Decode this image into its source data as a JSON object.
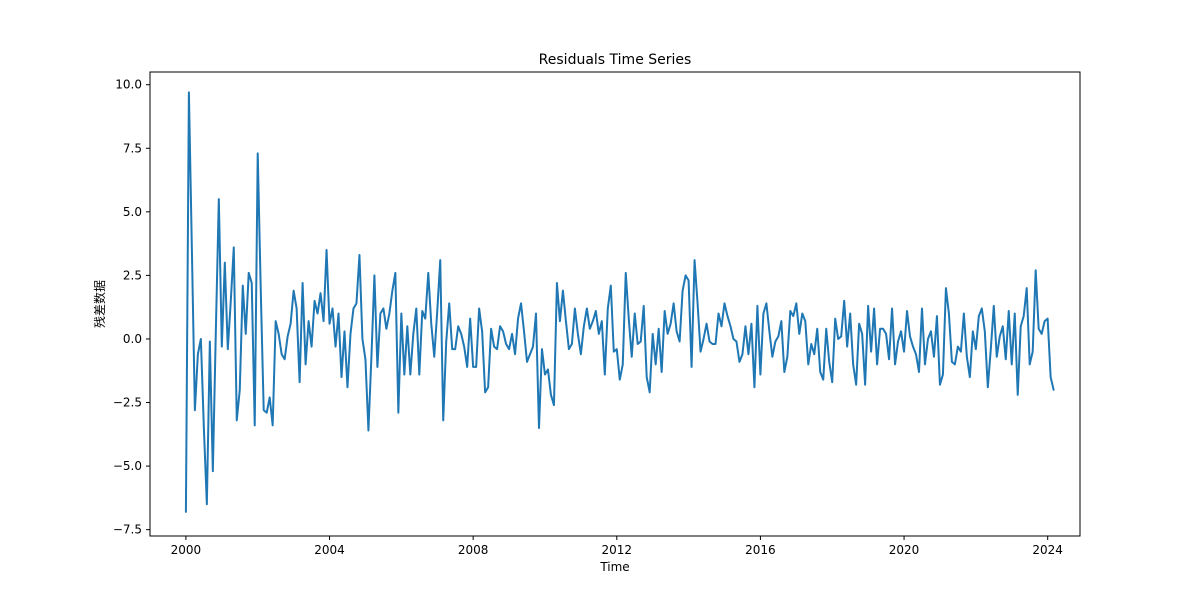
{
  "chart_data": {
    "type": "line",
    "title": "Residuals Time Series",
    "xlabel": "Time",
    "ylabel": "残差数据",
    "xlim": [
      1999.0,
      2024.9
    ],
    "ylim": [
      -7.75,
      10.5
    ],
    "x_ticks": [
      2000,
      2004,
      2008,
      2012,
      2016,
      2020,
      2024
    ],
    "x_tick_labels": [
      "2000",
      "2004",
      "2008",
      "2012",
      "2016",
      "2020",
      "2024"
    ],
    "y_ticks": [
      -7.5,
      -5.0,
      -2.5,
      0.0,
      2.5,
      5.0,
      7.5,
      10.0
    ],
    "y_tick_labels": [
      "−7.5",
      "−5.0",
      "−2.5",
      "0.0",
      "2.5",
      "5.0",
      "7.5",
      "10.0"
    ],
    "grid": false,
    "legend": false,
    "line_color": "#1f77b4",
    "series": [
      {
        "x_start": 2000.0,
        "x_step": 0.08333,
        "values": [
          -6.8,
          9.7,
          3.5,
          -2.8,
          -0.6,
          0.0,
          -3.5,
          -6.5,
          -0.1,
          -5.2,
          0.3,
          5.5,
          -0.3,
          3.0,
          -0.4,
          1.5,
          3.6,
          -3.2,
          -2.0,
          2.1,
          0.2,
          2.6,
          2.2,
          -3.4,
          7.3,
          2.0,
          -2.8,
          -2.9,
          -2.3,
          -3.4,
          0.7,
          0.2,
          -0.6,
          -0.8,
          0.1,
          0.6,
          1.9,
          1.2,
          -1.7,
          2.2,
          -1.0,
          0.7,
          -0.3,
          1.5,
          1.0,
          1.8,
          0.7,
          3.5,
          0.6,
          1.2,
          -0.3,
          1.0,
          -1.5,
          0.3,
          -1.9,
          0.2,
          1.2,
          1.4,
          3.3,
          0.0,
          -0.8,
          -3.6,
          -0.7,
          2.5,
          -1.1,
          1.0,
          1.2,
          0.4,
          1.0,
          1.9,
          2.6,
          -2.9,
          1.0,
          -1.4,
          0.5,
          -1.4,
          0.2,
          1.2,
          -1.4,
          1.1,
          0.8,
          2.6,
          0.6,
          -0.7,
          1.1,
          3.1,
          -3.2,
          -0.1,
          1.4,
          -0.4,
          -0.4,
          0.5,
          0.2,
          -0.3,
          -1.1,
          0.8,
          -1.1,
          -1.1,
          1.2,
          0.3,
          -2.1,
          -1.9,
          0.4,
          -0.3,
          -0.4,
          0.5,
          0.3,
          -0.2,
          -0.4,
          0.2,
          -0.6,
          0.8,
          1.4,
          0.3,
          -0.9,
          -0.6,
          -0.3,
          1.0,
          -3.5,
          -0.4,
          -1.4,
          -1.2,
          -2.2,
          -2.6,
          2.2,
          0.7,
          1.9,
          0.7,
          -0.4,
          -0.2,
          1.2,
          0.2,
          -0.6,
          0.5,
          1.2,
          0.4,
          0.7,
          1.1,
          0.2,
          0.7,
          -1.4,
          1.2,
          2.1,
          -0.5,
          -0.4,
          -1.6,
          -1.0,
          2.6,
          0.8,
          -0.7,
          1.0,
          -0.2,
          -0.1,
          1.3,
          -1.5,
          -2.1,
          0.2,
          -1.0,
          0.4,
          -1.3,
          1.1,
          0.2,
          0.6,
          1.4,
          0.3,
          -0.1,
          1.9,
          2.5,
          2.3,
          -1.1,
          3.1,
          1.4,
          -0.5,
          0.0,
          0.6,
          -0.1,
          -0.2,
          -0.2,
          1.0,
          0.5,
          1.4,
          0.9,
          0.5,
          0.0,
          -0.1,
          -0.9,
          -0.6,
          0.5,
          -0.6,
          0.6,
          -1.9,
          1.3,
          -1.4,
          1.0,
          1.4,
          0.3,
          -0.7,
          -0.1,
          0.1,
          0.7,
          -1.3,
          -0.7,
          1.1,
          0.9,
          1.4,
          0.2,
          1.0,
          0.7,
          -1.0,
          -0.2,
          -0.6,
          0.4,
          -1.3,
          -1.6,
          0.4,
          -0.9,
          -1.7,
          0.8,
          0.0,
          0.1,
          1.5,
          -0.3,
          1.0,
          -1.0,
          -1.8,
          0.6,
          0.2,
          -1.8,
          1.3,
          -0.5,
          1.2,
          -1.0,
          0.4,
          0.4,
          0.2,
          -0.8,
          1.2,
          -1.0,
          -0.1,
          0.3,
          -0.5,
          1.1,
          0.1,
          -0.3,
          -0.6,
          -1.3,
          1.2,
          -1.0,
          0.0,
          0.3,
          -0.7,
          0.9,
          -1.8,
          -1.4,
          2.0,
          1.0,
          -0.9,
          -1.0,
          -0.3,
          -0.5,
          1.0,
          -0.7,
          -1.5,
          0.3,
          -0.4,
          0.9,
          1.2,
          0.3,
          -1.9,
          -0.4,
          1.3,
          -0.7,
          0.1,
          0.5,
          -0.8,
          1.1,
          -1.0,
          1.0,
          -2.2,
          0.5,
          0.9,
          2.0,
          -1.0,
          -0.5,
          2.7,
          0.4,
          0.2,
          0.7,
          0.8,
          -1.5,
          -2.0
        ]
      }
    ]
  }
}
